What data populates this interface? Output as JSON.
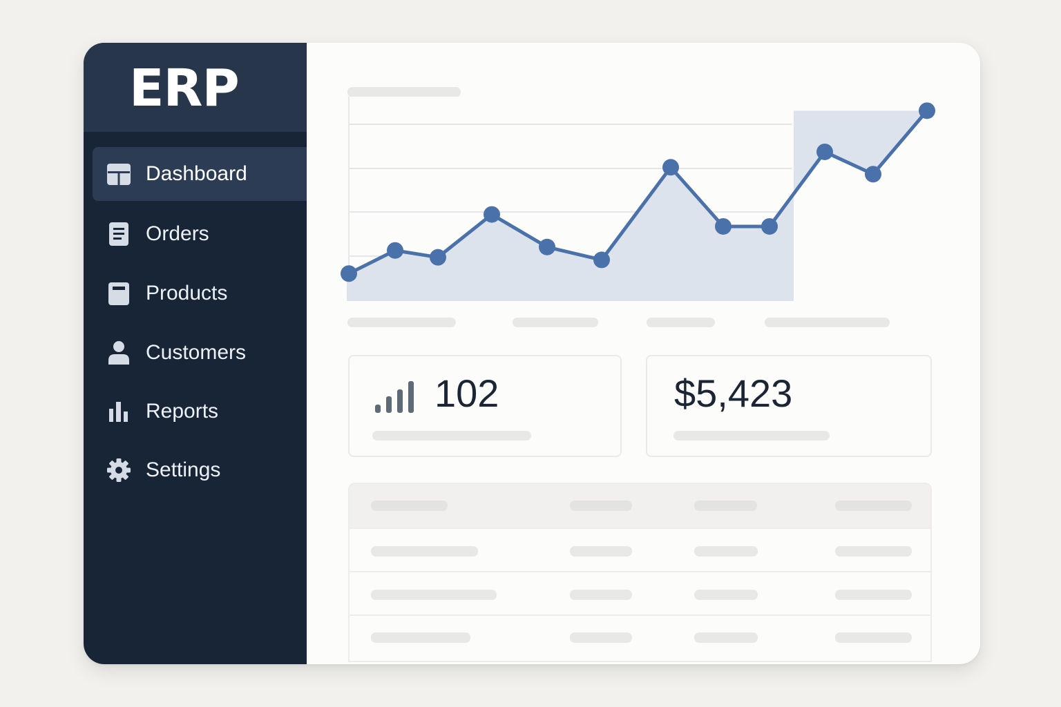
{
  "app": {
    "logo": "ERP"
  },
  "sidebar": {
    "items": [
      {
        "label": "Dashboard",
        "icon": "dashboard-icon",
        "active": true
      },
      {
        "label": "Orders",
        "icon": "document-icon",
        "active": false
      },
      {
        "label": "Products",
        "icon": "product-box-icon",
        "active": false
      },
      {
        "label": "Customers",
        "icon": "user-icon",
        "active": false
      },
      {
        "label": "Reports",
        "icon": "bar-chart-icon",
        "active": false
      },
      {
        "label": "Settings",
        "icon": "gear-icon",
        "active": false
      }
    ]
  },
  "colors": {
    "sidebar": "#182537",
    "logo_area": "#27364b",
    "active_item": "#2c3c54",
    "accent": "#4a71aa",
    "area_fill": "#dce3ec",
    "placeholder": "#e8e8e6"
  },
  "stats": [
    {
      "value": "102",
      "icon": "signal-bars-icon"
    },
    {
      "value": "$5,423"
    }
  ],
  "chart_data": {
    "type": "area",
    "x": [
      1,
      2,
      3,
      4,
      5,
      6,
      7,
      8,
      9,
      10,
      11,
      12
    ],
    "values": [
      32,
      59,
      51,
      101,
      63,
      48,
      156,
      87,
      87,
      174,
      148,
      222
    ],
    "ylim": [
      0,
      240
    ],
    "grid": true,
    "legend": "none"
  }
}
